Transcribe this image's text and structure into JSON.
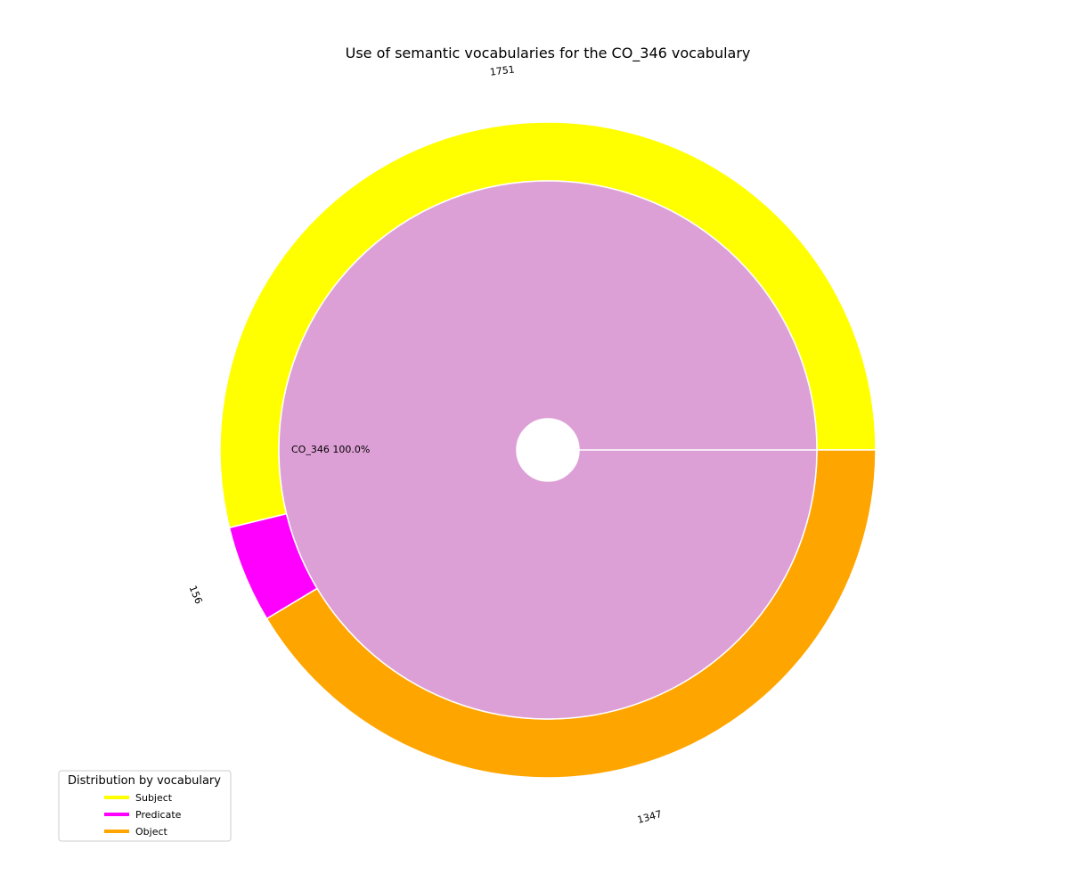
{
  "chart_data": {
    "type": "pie",
    "title": "Use of semantic vocabularies for the CO_346 vocabulary",
    "outer_ring": {
      "categories": [
        "Subject",
        "Predicate",
        "Object"
      ],
      "values": [
        1751,
        156,
        1347
      ],
      "colors": [
        "#ffff00",
        "#ff00ff",
        "#ffa500"
      ]
    },
    "inner_ring": {
      "categories": [
        "CO_346"
      ],
      "values": [
        100.0
      ],
      "label": "CO_346  100.0%",
      "colors": [
        "#dda0d6"
      ]
    },
    "legend": {
      "title": "Distribution by vocabulary",
      "placement": "lower-left",
      "entries": [
        "Subject",
        "Predicate",
        "Object"
      ]
    }
  }
}
